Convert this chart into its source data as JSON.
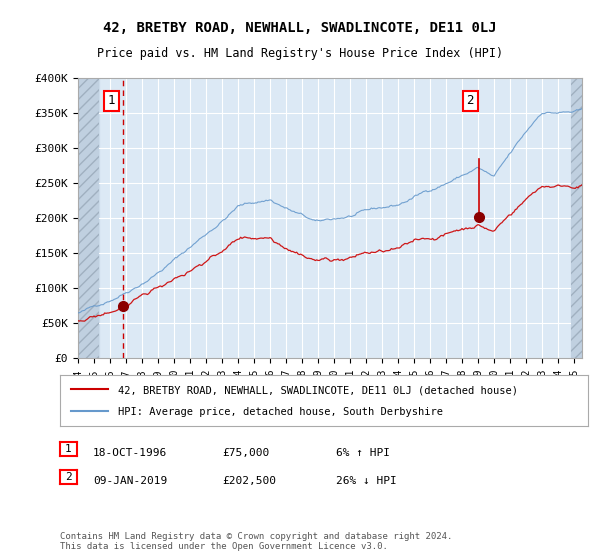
{
  "title": "42, BRETBY ROAD, NEWHALL, SWADLINCOTE, DE11 0LJ",
  "subtitle": "Price paid vs. HM Land Registry's House Price Index (HPI)",
  "legend_line1": "42, BRETBY ROAD, NEWHALL, SWADLINCOTE, DE11 0LJ (detached house)",
  "legend_line2": "HPI: Average price, detached house, South Derbyshire",
  "annotation1_date": "18-OCT-1996",
  "annotation1_price": "£75,000",
  "annotation1_hpi": "6% ↑ HPI",
  "annotation2_date": "09-JAN-2019",
  "annotation2_price": "£202,500",
  "annotation2_hpi": "26% ↓ HPI",
  "footer": "Contains HM Land Registry data © Crown copyright and database right 2024.\nThis data is licensed under the Open Government Licence v3.0.",
  "purchase1_year": 1996.79,
  "purchase1_value": 75000,
  "purchase2_year": 2019.03,
  "purchase2_value": 202500,
  "hpi_peak2_value": 285000,
  "ylim": [
    0,
    400000
  ],
  "xlim_start": 1994.0,
  "xlim_end": 2025.5,
  "bg_color": "#dce9f5",
  "plot_bg": "#dce9f5",
  "hatch_color": "#c0d0e0",
  "red_color": "#cc0000",
  "blue_color": "#6699cc",
  "grid_color": "#ffffff",
  "label_color": "#333333"
}
